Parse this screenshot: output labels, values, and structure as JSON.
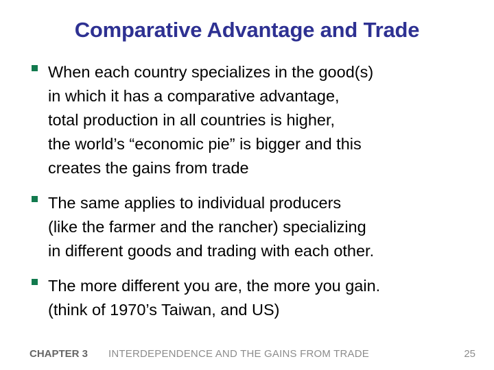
{
  "slide": {
    "title": "Comparative Advantage and Trade",
    "bullets": [
      {
        "lines": [
          "When each country specializes in the good(s)",
          "in which it has a comparative advantage,",
          "total production in all countries is higher,",
          "the world’s “economic pie” is bigger and this",
          "creates the gains from trade"
        ]
      },
      {
        "lines": [
          "The same applies to individual producers",
          "(like the farmer and the rancher) specializing",
          "in different goods and trading with each other."
        ]
      },
      {
        "lines": [
          "The more different you are, the more you gain.",
          "(think of 1970’s Taiwan, and US)"
        ]
      }
    ]
  },
  "footer": {
    "chapter": "CHAPTER 3",
    "chapter_title": "INTERDEPENDENCE AND THE GAINS FROM TRADE",
    "page_number": "25"
  },
  "colors": {
    "title": "#2e3192",
    "bullet_marker": "#127a4e",
    "footer_text": "#8c8c8c"
  }
}
